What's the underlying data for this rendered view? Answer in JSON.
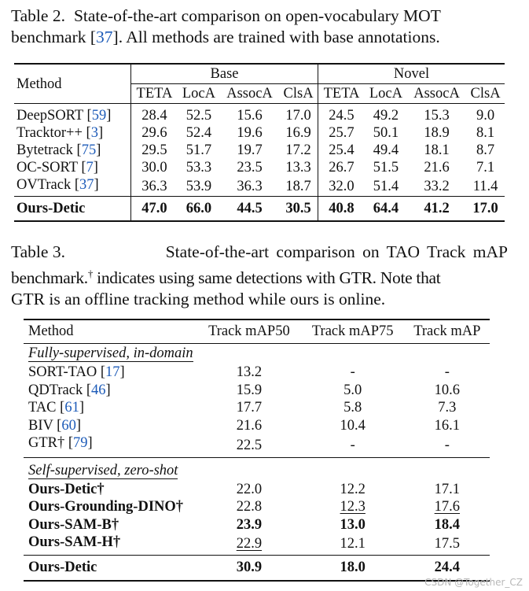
{
  "table2": {
    "caption_number": "Table 2.",
    "caption_line1_pre": "State-of-the-art comparison on open-vocabulary MOT",
    "caption_line2_pre": "benchmark [",
    "caption_ref": "37",
    "caption_line2_post": "]. All methods are trained with base annotations.",
    "method_header": "Method",
    "group_base": "Base",
    "group_novel": "Novel",
    "columns": [
      "TETA",
      "LocA",
      "AssocA",
      "ClsA",
      "TETA",
      "LocA",
      "AssocA",
      "ClsA"
    ],
    "rows": [
      {
        "name": "DeepSORT",
        "ref": "59",
        "values": [
          "28.4",
          "52.5",
          "15.6",
          "17.0",
          "24.5",
          "49.2",
          "15.3",
          "9.0"
        ]
      },
      {
        "name": "Tracktor++",
        "ref": "3",
        "values": [
          "29.6",
          "52.4",
          "19.6",
          "16.9",
          "25.7",
          "50.1",
          "18.9",
          "8.1"
        ]
      },
      {
        "name": "Bytetrack",
        "ref": "75",
        "values": [
          "29.5",
          "51.7",
          "19.7",
          "17.2",
          "25.4",
          "49.4",
          "18.1",
          "8.7"
        ]
      },
      {
        "name": "OC-SORT",
        "ref": "7",
        "values": [
          "30.0",
          "53.3",
          "23.5",
          "13.3",
          "26.7",
          "51.5",
          "21.6",
          "7.1"
        ]
      },
      {
        "name": "OVTrack",
        "ref": "37",
        "values": [
          "36.3",
          "53.9",
          "36.3",
          "18.7",
          "32.0",
          "51.4",
          "33.2",
          "11.4"
        ]
      }
    ],
    "ours": {
      "name": "Ours-Detic",
      "values": [
        "47.0",
        "66.0",
        "44.5",
        "30.5",
        "40.8",
        "64.4",
        "41.2",
        "17.0"
      ]
    }
  },
  "table3": {
    "caption_number": "Table 3.",
    "caption_line1": "State-of-the-art comparison on TAO Track mAP",
    "caption_line2_pre": "benchmark.",
    "caption_dagger": "†",
    "caption_line2_post": " indicates using same detections with GTR. Note that",
    "caption_line3": "GTR is an offline tracking method while ours is online.",
    "headers": [
      "Method",
      "Track mAP50",
      "Track mAP75",
      "Track mAP"
    ],
    "section1": "Fully-supervised, in-domain",
    "rows1": [
      {
        "name": "SORT-TAO ",
        "ref": "17",
        "values": [
          "13.2",
          "-",
          "-"
        ]
      },
      {
        "name": "QDTrack ",
        "ref": "46",
        "values": [
          "15.9",
          "5.0",
          "10.6"
        ]
      },
      {
        "name": "TAC ",
        "ref": "61",
        "values": [
          "17.7",
          "5.8",
          "7.3"
        ]
      },
      {
        "name": "BIV ",
        "ref": "60",
        "values": [
          "21.6",
          "10.4",
          "16.1"
        ]
      },
      {
        "name": "GTR† ",
        "ref": "79",
        "values": [
          "22.5",
          "-",
          "-"
        ]
      }
    ],
    "section2": "Self-supervised, zero-shot",
    "rows2": [
      {
        "name": "Ours-Detic†",
        "values": [
          "22.0",
          "12.2",
          "17.1"
        ]
      },
      {
        "name": "Ours-Grounding-DINO†",
        "values": [
          "22.8",
          "12.3",
          "17.6"
        ]
      },
      {
        "name": "Ours-SAM-B†",
        "values": [
          "23.9",
          "13.0",
          "18.4"
        ]
      },
      {
        "name": "Ours-SAM-H†",
        "values": [
          "22.9",
          "12.1",
          "17.5"
        ]
      }
    ],
    "ours": {
      "name": "Ours-Detic",
      "values": [
        "30.9",
        "18.0",
        "24.4"
      ]
    }
  },
  "watermark": "CSDN @Together_CZ"
}
